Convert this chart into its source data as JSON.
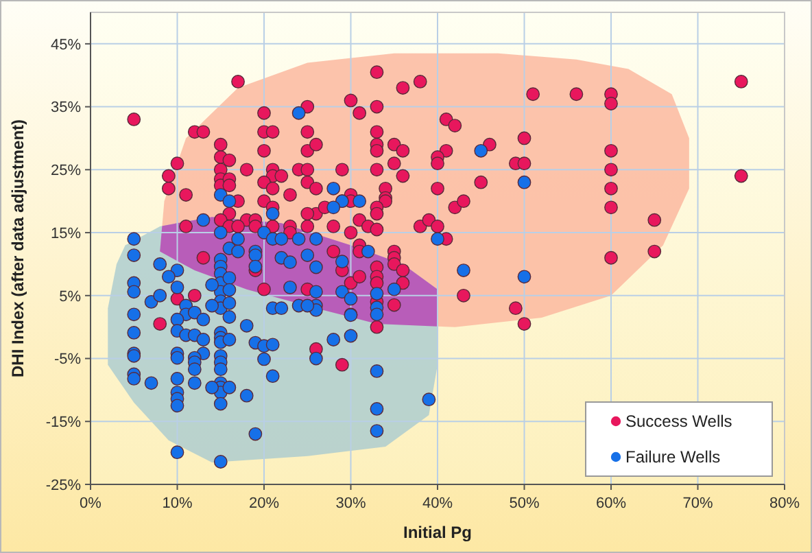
{
  "chart_data": {
    "type": "scatter",
    "xlabel": "Initial Pg",
    "ylabel": "DHI Index (after data adjustment)",
    "xlim": [
      0,
      80
    ],
    "xticks": [
      {
        "value": 0,
        "label": "0%"
      },
      {
        "value": 10,
        "label": "10%"
      },
      {
        "value": 20,
        "label": "20%"
      },
      {
        "value": 30,
        "label": "30%"
      },
      {
        "value": 40,
        "label": "40%"
      },
      {
        "value": 50,
        "label": "50%"
      },
      {
        "value": 60,
        "label": "60%"
      },
      {
        "value": 70,
        "label": "70%"
      },
      {
        "value": 80,
        "label": "80%"
      }
    ],
    "ylim": [
      -25,
      50
    ],
    "yticks": [
      {
        "value": -25,
        "label": "-25%"
      },
      {
        "value": -15,
        "label": "-15%"
      },
      {
        "value": -5,
        "label": "-5%"
      },
      {
        "value": 5,
        "label": "5%"
      },
      {
        "value": 15,
        "label": "15%"
      },
      {
        "value": 25,
        "label": "25%"
      },
      {
        "value": 35,
        "label": "35%"
      },
      {
        "value": 45,
        "label": "45%"
      }
    ],
    "grid": true,
    "legend": "bottom right",
    "marker": "circle",
    "series": [
      {
        "name": "Success Wells",
        "color": "#e8175d",
        "x": [
          17,
          5,
          12,
          13,
          10,
          9,
          9,
          11,
          15,
          15,
          15,
          15,
          15,
          16,
          16,
          16,
          18,
          20,
          20,
          21,
          20,
          21,
          21,
          20,
          21,
          22,
          20,
          21,
          23,
          25,
          25,
          25,
          26,
          24,
          25,
          25,
          26,
          26,
          25,
          16,
          17,
          18,
          19,
          11,
          15,
          16,
          17,
          19,
          21,
          23,
          23,
          25,
          33,
          36,
          38,
          30,
          33,
          31,
          51,
          41,
          42,
          33,
          33,
          33,
          35,
          36,
          41,
          46,
          50,
          40,
          40,
          29,
          35,
          36,
          33,
          49,
          50,
          45,
          40,
          34,
          34,
          34,
          33,
          33,
          30,
          30,
          29,
          27,
          28,
          31,
          32,
          33,
          30,
          38,
          39,
          40,
          42,
          43,
          41,
          28,
          31,
          31,
          35,
          56,
          60,
          60,
          75,
          60,
          60,
          60,
          60,
          65,
          65,
          60,
          75,
          35,
          35,
          36,
          33,
          33,
          33,
          36,
          30,
          31,
          29,
          43,
          49,
          50,
          26,
          29,
          33,
          33,
          35,
          30,
          13,
          10,
          12,
          8,
          20,
          19,
          25
        ],
        "values": [
          39,
          33,
          31,
          31,
          26,
          24,
          22,
          21,
          29,
          27,
          25,
          23.5,
          22.5,
          26.5,
          23.5,
          22.5,
          25,
          34,
          31,
          31,
          28,
          25,
          24,
          23,
          22,
          24,
          20,
          19,
          21,
          35,
          31,
          28,
          29,
          25,
          25,
          23,
          22,
          18,
          18,
          18,
          20,
          17,
          17,
          16,
          17,
          16,
          16,
          16,
          16,
          16,
          15,
          16,
          40.5,
          38,
          39,
          36,
          35,
          34,
          37,
          33,
          32,
          31,
          29,
          28,
          29,
          28,
          28,
          29,
          30,
          27,
          26,
          25,
          26,
          24,
          25,
          26,
          26,
          23,
          22,
          22,
          20.5,
          20,
          19,
          18,
          21,
          20,
          20,
          19,
          16,
          17,
          16,
          15.5,
          15,
          16,
          17,
          16,
          19,
          20,
          14,
          12,
          13,
          12,
          12,
          37,
          37,
          35.5,
          39,
          28,
          25,
          22,
          19,
          17,
          12,
          11,
          24,
          11,
          10,
          9,
          9.5,
          8,
          7,
          7,
          7,
          8,
          9,
          5,
          3,
          0.5,
          -3.5,
          -6,
          0,
          4,
          3.5,
          2,
          11,
          4.5,
          5,
          0.5,
          6,
          9,
          6
        ]
      },
      {
        "name": "Failure Wells",
        "color": "#1670e8",
        "x": [
          24,
          15,
          16,
          21,
          13,
          5,
          15,
          16,
          17,
          17,
          19,
          20,
          21,
          22,
          24,
          26,
          28,
          29,
          31,
          28,
          45,
          50,
          40,
          32,
          26,
          26,
          26,
          26,
          29,
          29,
          30,
          30,
          30,
          33,
          33,
          33,
          35,
          43,
          50,
          28,
          26,
          33,
          39,
          33,
          33,
          5,
          5,
          5,
          5,
          5,
          5,
          5,
          5,
          5,
          8,
          10,
          9,
          10,
          7,
          8,
          11,
          11,
          12,
          10,
          10,
          11,
          12,
          13,
          13,
          13,
          12,
          12,
          12,
          12,
          10,
          10,
          10,
          10,
          10,
          10,
          7,
          10,
          15,
          18,
          19,
          20,
          21,
          20,
          21,
          18,
          19,
          21,
          22,
          23,
          24,
          25,
          15,
          15,
          15,
          15,
          15,
          15,
          15,
          15,
          15,
          15,
          15,
          15,
          15,
          15,
          15,
          15,
          15,
          16,
          16,
          16,
          16,
          16,
          16,
          14,
          14,
          14,
          19,
          19,
          22,
          23,
          25
        ],
        "values": [
          34,
          21,
          20,
          18,
          17,
          14,
          15,
          12.5,
          14,
          12,
          12,
          15,
          14,
          14,
          14,
          14,
          22,
          20,
          20,
          19,
          28,
          23,
          14,
          12,
          9.5,
          5.6,
          3.4,
          2.7,
          10.4,
          5.6,
          4.5,
          1.9,
          -1.4,
          5.3,
          3.1,
          2,
          6,
          9,
          8,
          -2,
          -5,
          -7,
          -11.5,
          -13,
          -16.5,
          11.4,
          7,
          5.6,
          2,
          -0.9,
          -4.2,
          -4.6,
          -7.5,
          -8.2,
          10,
          9,
          8,
          6.3,
          4,
          5,
          3.4,
          2,
          2.3,
          1.2,
          -0.6,
          -1.3,
          -1.3,
          1.2,
          -2,
          -4.2,
          -4.9,
          -5.6,
          -6.7,
          -8.9,
          -4.2,
          -4.9,
          -8.2,
          -10.4,
          -11.4,
          -12.5,
          -8.9,
          -19.9,
          10.7,
          0.2,
          -2.5,
          -3,
          -2.8,
          -5.1,
          -7.8,
          -10.9,
          -17,
          3,
          3,
          6.3,
          3.4,
          3.4,
          9.6,
          8.5,
          7,
          5.6,
          4.1,
          3,
          -0.9,
          -1.7,
          -2.4,
          -4.6,
          -5.6,
          -6.7,
          -8.9,
          -9.6,
          -10.4,
          -12.2,
          -21.4,
          7.8,
          5.9,
          3.8,
          1.6,
          -2,
          -9.6,
          6.7,
          3.4,
          -9.6,
          11.4,
          9.6,
          11,
          10.3,
          11.4
        ]
      }
    ]
  }
}
